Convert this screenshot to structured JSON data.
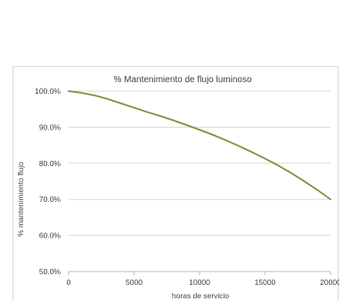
{
  "chart_data": {
    "type": "line",
    "title": "% Mantenimiento de flujo luminoso",
    "xlabel": "horas de servicio",
    "ylabel": "% mantenimiento flujo",
    "xlim": [
      0,
      20000
    ],
    "ylim": [
      50,
      100
    ],
    "x_ticks": [
      0,
      5000,
      10000,
      15000,
      20000
    ],
    "x_tick_labels": [
      "0",
      "5000",
      "10000",
      "15000",
      "20000"
    ],
    "y_ticks": [
      50,
      60,
      70,
      80,
      90,
      100
    ],
    "y_tick_labels": [
      "50.0%",
      "60.0%",
      "70.0%",
      "80.0%",
      "90.0%",
      "100.0%"
    ],
    "grid": true,
    "legend": "none",
    "series": [
      {
        "color": "#77933c",
        "x": [
          0,
          1000,
          2000,
          3000,
          4000,
          5000,
          6000,
          7000,
          8000,
          9000,
          10000,
          11000,
          12000,
          13000,
          14000,
          15000,
          16000,
          17000,
          18000,
          19000,
          20000
        ],
        "y": [
          100.0,
          99.5,
          98.8,
          97.8,
          96.6,
          95.4,
          94.2,
          93.1,
          91.9,
          90.6,
          89.3,
          87.9,
          86.4,
          84.8,
          83.1,
          81.3,
          79.4,
          77.3,
          75.0,
          72.6,
          70.0
        ]
      }
    ]
  }
}
